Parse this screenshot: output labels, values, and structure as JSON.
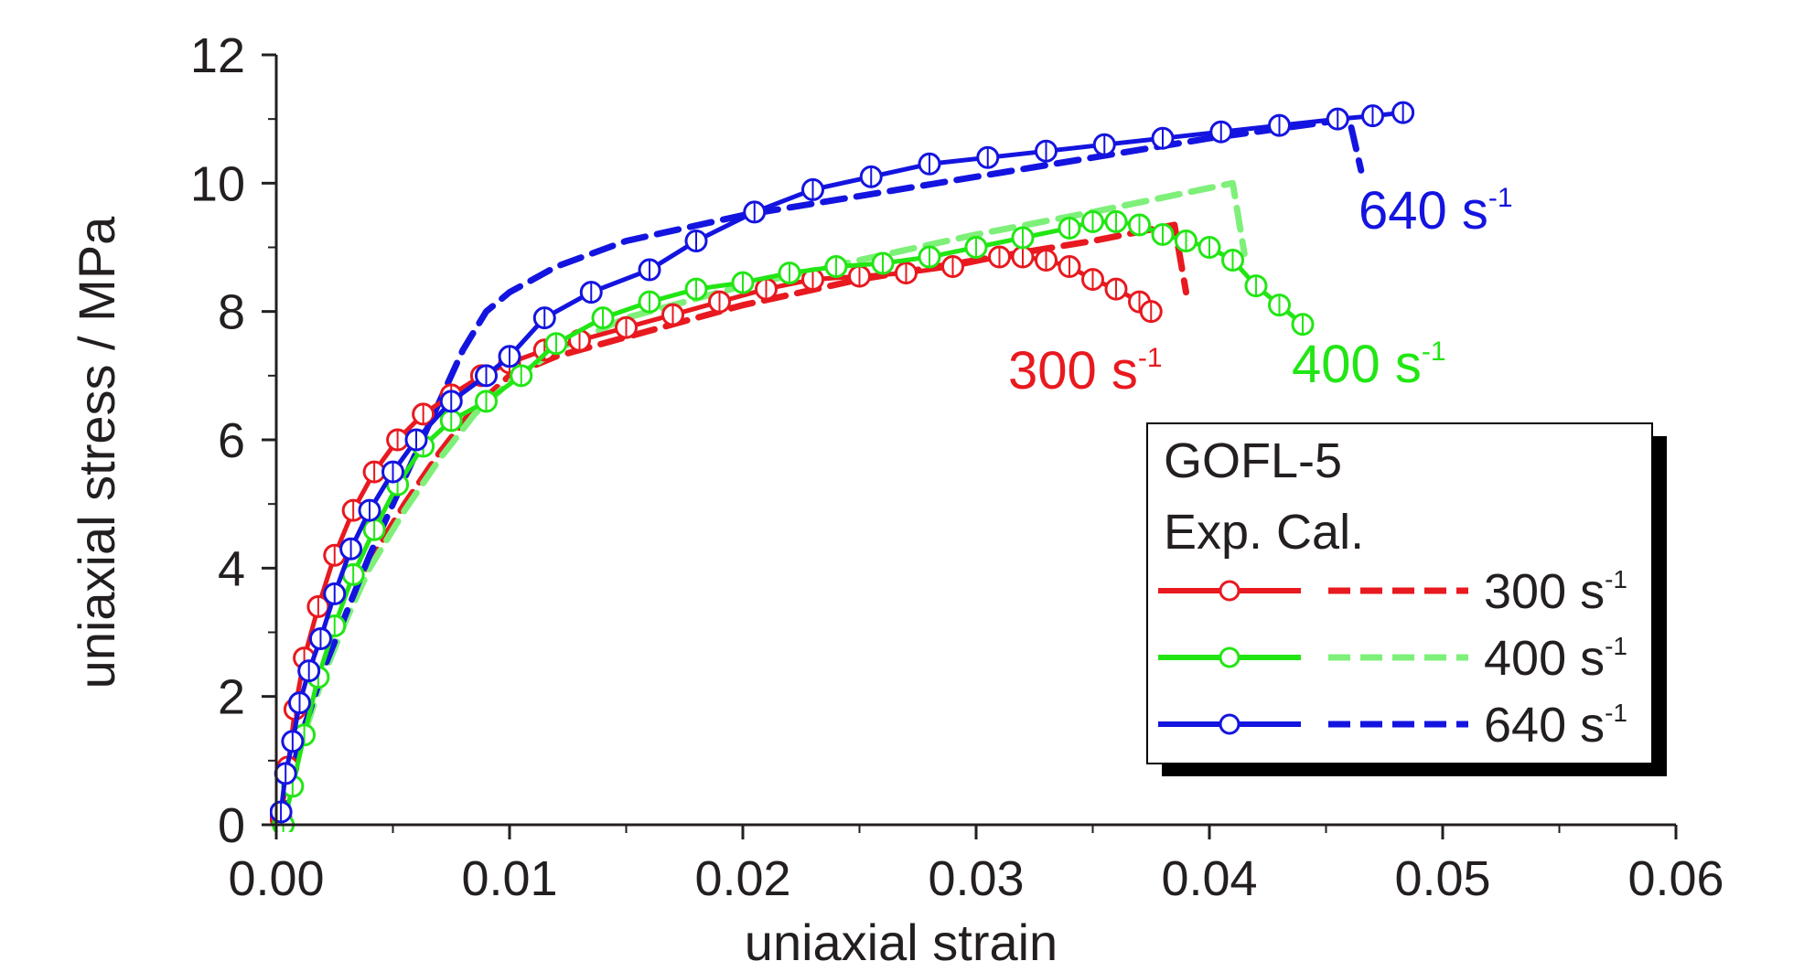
{
  "chart_data": {
    "type": "line",
    "xlabel": "uniaxial strain",
    "ylabel": "uniaxial stress / MPa",
    "xlim": [
      0,
      0.06
    ],
    "ylim": [
      0,
      12
    ],
    "x_ticks": [
      "0.00",
      "0.01",
      "0.02",
      "0.03",
      "0.04",
      "0.05",
      "0.06"
    ],
    "y_ticks": [
      "0",
      "2",
      "4",
      "6",
      "8",
      "10",
      "12"
    ],
    "grid": false,
    "legend": {
      "placement": "bottom-right",
      "title_lines": [
        "GOFL-5",
        "Exp. Cal."
      ],
      "entries": [
        {
          "rate": "300 s",
          "exp": "-1"
        },
        {
          "rate": "400 s",
          "exp": "-1"
        },
        {
          "rate": "640 s",
          "exp": "-1"
        }
      ]
    },
    "annotations": [
      {
        "text": "300 s",
        "exp": "-1",
        "color": "#e8191f"
      },
      {
        "text": "400 s",
        "exp": "-1",
        "color": "#22e614"
      },
      {
        "text": "640 s",
        "exp": "-1",
        "color": "#1414e0"
      }
    ],
    "series": [
      {
        "rate": "300 s-1",
        "kind": "experimental",
        "color": "#e8191f",
        "x": [
          0.0002,
          0.0005,
          0.0008,
          0.0012,
          0.0018,
          0.0025,
          0.0033,
          0.0042,
          0.0052,
          0.0063,
          0.0075,
          0.0088,
          0.01,
          0.0115,
          0.013,
          0.015,
          0.017,
          0.019,
          0.021,
          0.023,
          0.025,
          0.027,
          0.029,
          0.031,
          0.032,
          0.033,
          0.034,
          0.035,
          0.036,
          0.037,
          0.0375
        ],
        "y": [
          0.1,
          0.9,
          1.8,
          2.6,
          3.4,
          4.2,
          4.9,
          5.5,
          6.0,
          6.4,
          6.7,
          7.0,
          7.2,
          7.4,
          7.55,
          7.75,
          7.95,
          8.15,
          8.35,
          8.5,
          8.55,
          8.6,
          8.7,
          8.85,
          8.85,
          8.8,
          8.7,
          8.5,
          8.35,
          8.15,
          8.0
        ]
      },
      {
        "rate": "300 s-1",
        "kind": "calculated",
        "color": "#e8191f",
        "x": [
          0.0002,
          0.001,
          0.002,
          0.003,
          0.004,
          0.0055,
          0.007,
          0.0085,
          0.01,
          0.012,
          0.015,
          0.02,
          0.025,
          0.03,
          0.035,
          0.0385,
          0.039
        ],
        "y": [
          0.0,
          1.3,
          2.4,
          3.3,
          4.1,
          5.0,
          5.8,
          6.5,
          7.0,
          7.3,
          7.6,
          8.1,
          8.5,
          8.8,
          9.1,
          9.35,
          8.3
        ]
      },
      {
        "rate": "400 s-1",
        "kind": "experimental",
        "color": "#22e614",
        "x": [
          0.0003,
          0.0007,
          0.0012,
          0.0018,
          0.0025,
          0.0033,
          0.0042,
          0.0052,
          0.0063,
          0.0075,
          0.009,
          0.0105,
          0.012,
          0.014,
          0.016,
          0.018,
          0.02,
          0.022,
          0.024,
          0.026,
          0.028,
          0.03,
          0.032,
          0.034,
          0.035,
          0.036,
          0.037,
          0.038,
          0.039,
          0.04,
          0.041,
          0.042,
          0.043,
          0.044
        ],
        "y": [
          0.0,
          0.6,
          1.4,
          2.3,
          3.1,
          3.9,
          4.6,
          5.3,
          5.9,
          6.3,
          6.6,
          7.0,
          7.5,
          7.9,
          8.15,
          8.35,
          8.45,
          8.6,
          8.7,
          8.75,
          8.85,
          9.0,
          9.15,
          9.3,
          9.4,
          9.4,
          9.35,
          9.2,
          9.1,
          9.0,
          8.8,
          8.4,
          8.1,
          7.8
        ]
      },
      {
        "rate": "400 s-1",
        "kind": "calculated",
        "color": "#7ef07a",
        "x": [
          0.0003,
          0.001,
          0.002,
          0.003,
          0.004,
          0.0055,
          0.007,
          0.0085,
          0.01,
          0.012,
          0.015,
          0.02,
          0.025,
          0.03,
          0.035,
          0.041,
          0.0415
        ],
        "y": [
          0.0,
          1.2,
          2.3,
          3.2,
          4.0,
          4.9,
          5.7,
          6.4,
          6.9,
          7.4,
          7.9,
          8.4,
          8.8,
          9.2,
          9.55,
          10.0,
          8.9
        ]
      },
      {
        "rate": "640 s-1",
        "kind": "experimental",
        "color": "#1414e0",
        "x": [
          0.0002,
          0.0004,
          0.0007,
          0.001,
          0.0014,
          0.0019,
          0.0025,
          0.0032,
          0.004,
          0.005,
          0.006,
          0.0075,
          0.009,
          0.01,
          0.0115,
          0.0135,
          0.016,
          0.018,
          0.0205,
          0.023,
          0.0255,
          0.028,
          0.0305,
          0.033,
          0.0355,
          0.038,
          0.0405,
          0.043,
          0.0455,
          0.047,
          0.0483
        ],
        "y": [
          0.2,
          0.8,
          1.3,
          1.9,
          2.4,
          2.9,
          3.6,
          4.3,
          4.9,
          5.5,
          6.0,
          6.6,
          7.0,
          7.3,
          7.9,
          8.3,
          8.65,
          9.1,
          9.55,
          9.9,
          10.1,
          10.3,
          10.4,
          10.5,
          10.6,
          10.7,
          10.8,
          10.9,
          11.0,
          11.05,
          11.1
        ]
      },
      {
        "rate": "640 s-1",
        "kind": "calculated",
        "color": "#1414e0",
        "x": [
          0.0002,
          0.001,
          0.002,
          0.003,
          0.004,
          0.005,
          0.006,
          0.007,
          0.008,
          0.009,
          0.01,
          0.012,
          0.015,
          0.02,
          0.025,
          0.03,
          0.035,
          0.04,
          0.045,
          0.046,
          0.0465
        ],
        "y": [
          0.0,
          1.3,
          2.4,
          3.3,
          4.2,
          5.0,
          5.8,
          6.6,
          7.4,
          8.0,
          8.3,
          8.7,
          9.1,
          9.5,
          9.8,
          10.1,
          10.4,
          10.7,
          10.95,
          11.0,
          10.2
        ]
      }
    ]
  }
}
